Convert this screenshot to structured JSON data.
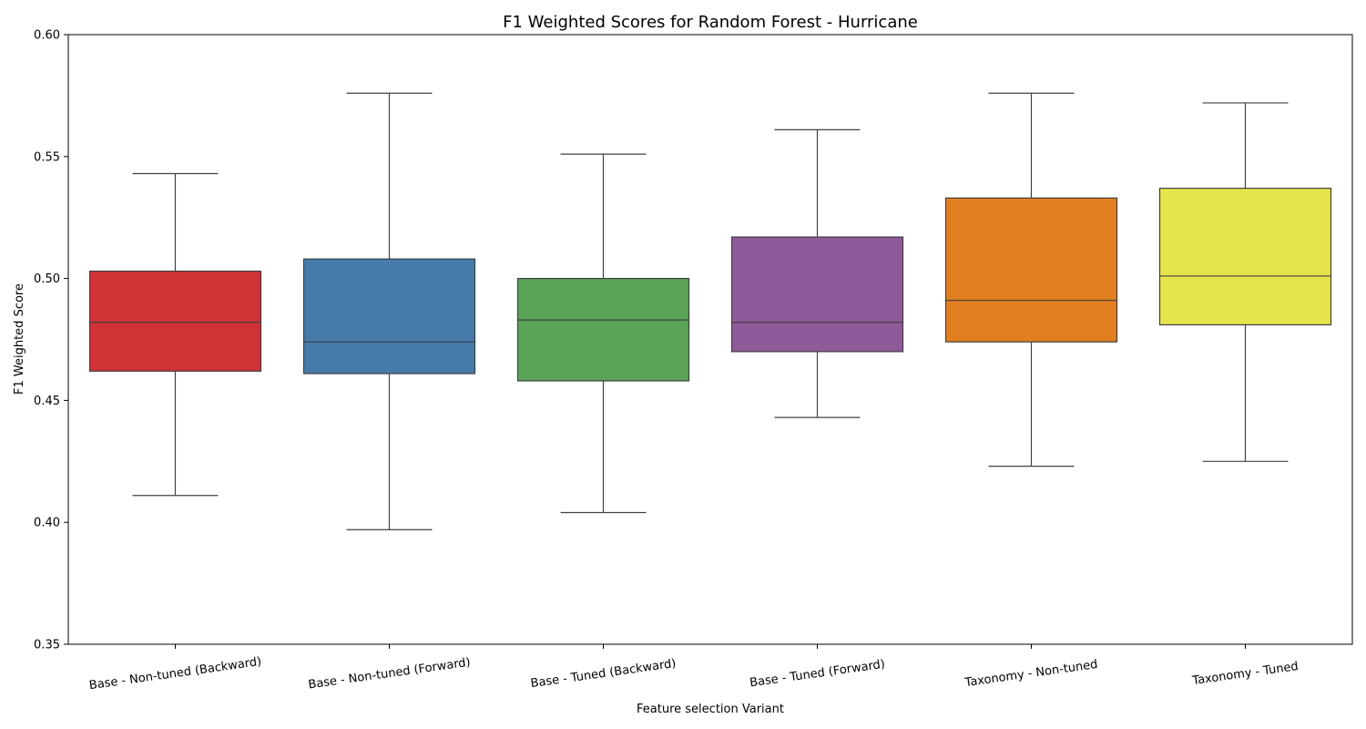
{
  "chart_data": {
    "type": "box",
    "title": "F1 Weighted Scores for Random Forest - Hurricane",
    "xlabel": "Feature selection Variant",
    "ylabel": "F1 Weighted Score",
    "ylim": [
      0.35,
      0.6
    ],
    "yticks": [
      0.35,
      0.4,
      0.45,
      0.5,
      0.55,
      0.6
    ],
    "ytick_labels": [
      "0.35",
      "0.40",
      "0.45",
      "0.50",
      "0.55",
      "0.60"
    ],
    "grid": false,
    "categories": [
      "Base - Non-tuned (Backward)",
      "Base - Non-tuned (Forward)",
      "Base - Tuned (Backward)",
      "Base - Tuned (Forward)",
      "Taxonomy - Non-tuned",
      "Taxonomy - Tuned"
    ],
    "series": [
      {
        "whisker_low": 0.411,
        "q1": 0.462,
        "median": 0.482,
        "q3": 0.503,
        "whisker_high": 0.543,
        "color": "#d03236"
      },
      {
        "whisker_low": 0.397,
        "q1": 0.461,
        "median": 0.474,
        "q3": 0.508,
        "whisker_high": 0.576,
        "color": "#457bab"
      },
      {
        "whisker_low": 0.404,
        "q1": 0.458,
        "median": 0.483,
        "q3": 0.5,
        "whisker_high": 0.551,
        "color": "#5ba356"
      },
      {
        "whisker_low": 0.443,
        "q1": 0.47,
        "median": 0.482,
        "q3": 0.517,
        "whisker_high": 0.561,
        "color": "#8f5a99"
      },
      {
        "whisker_low": 0.423,
        "q1": 0.474,
        "median": 0.491,
        "q3": 0.533,
        "whisker_high": 0.576,
        "color": "#e17f20"
      },
      {
        "whisker_low": 0.425,
        "q1": 0.481,
        "median": 0.501,
        "q3": 0.537,
        "whisker_high": 0.572,
        "color": "#e6e44b"
      }
    ]
  }
}
